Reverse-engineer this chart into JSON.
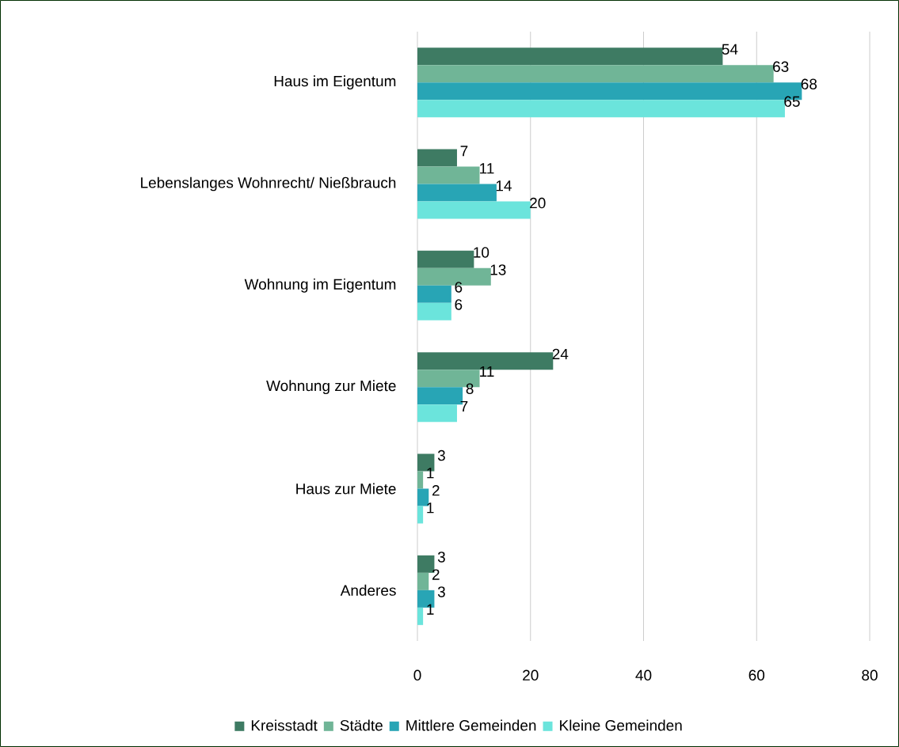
{
  "chart_data": {
    "type": "bar",
    "orientation": "horizontal",
    "categories": [
      "Haus im Eigentum",
      "Lebenslanges Wohnrecht/ Nießbrauch",
      "Wohnung im Eigentum",
      "Wohnung zur Miete",
      "Haus zur Miete",
      "Anderes"
    ],
    "series": [
      {
        "name": "Kreisstadt",
        "color": "#3e7b63",
        "values": [
          54,
          7,
          10,
          24,
          3,
          3
        ]
      },
      {
        "name": "Städte",
        "color": "#70b597",
        "values": [
          63,
          11,
          13,
          11,
          1,
          2
        ]
      },
      {
        "name": "Mittlere Gemeinden",
        "color": "#28a5b5",
        "values": [
          68,
          14,
          6,
          8,
          2,
          3
        ]
      },
      {
        "name": "Kleine Gemeinden",
        "color": "#6be4dc",
        "values": [
          65,
          20,
          6,
          7,
          1,
          1
        ]
      }
    ],
    "xlim": [
      0,
      80
    ],
    "xticks": [
      0,
      20,
      40,
      60,
      80
    ],
    "grid": "x",
    "legend": "bottom",
    "data_labels": true
  }
}
